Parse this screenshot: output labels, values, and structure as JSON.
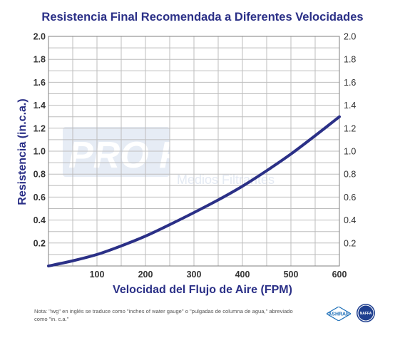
{
  "chart_data": {
    "type": "line",
    "title": "Resistencia Final Recomendada a Diferentes Velocidades",
    "xlabel": "Velocidad del Flujo de Aire (FPM)",
    "ylabel": "Resistencia (in.c.a.)",
    "xlim": [
      0,
      600
    ],
    "ylim": [
      0,
      2.0
    ],
    "x_ticks": [
      "100",
      "200",
      "300",
      "400",
      "500",
      "600"
    ],
    "y_ticks": [
      "0.2",
      "0.4",
      "0.6",
      "0.8",
      "1.0",
      "1.2",
      "1.4",
      "1.6",
      "1.8",
      "2.0"
    ],
    "y_ticks_right": [
      "0.2",
      "0.4",
      "0.6",
      "0.8",
      "1.0",
      "1.2",
      "1.4",
      "1.6",
      "1.8",
      "2.0"
    ],
    "grid": true,
    "series": [
      {
        "x": [
          0,
          50,
          100,
          150,
          200,
          250,
          300,
          350,
          400,
          450,
          500,
          550,
          600
        ],
        "y": [
          0.0,
          0.045,
          0.1,
          0.175,
          0.26,
          0.36,
          0.465,
          0.575,
          0.695,
          0.83,
          0.975,
          1.135,
          1.3
        ],
        "color": "#2b3087"
      }
    ]
  },
  "colors": {
    "curve": "#2b3087",
    "title": "#2b3087",
    "grid": "#bdbdbd"
  },
  "watermark": {
    "brand": "PRO FILTEC",
    "tagline": "Medios Filtrantes"
  },
  "note": {
    "text": "Nota: \"iwg\" en inglés se traduce como \"inches of water gauge\" o \"pulgadas de columna de agua,\" abreviado como \"in. c.a.\""
  },
  "logos": {
    "ashrae": "ASHRAE",
    "naffa": "NAFFA"
  }
}
